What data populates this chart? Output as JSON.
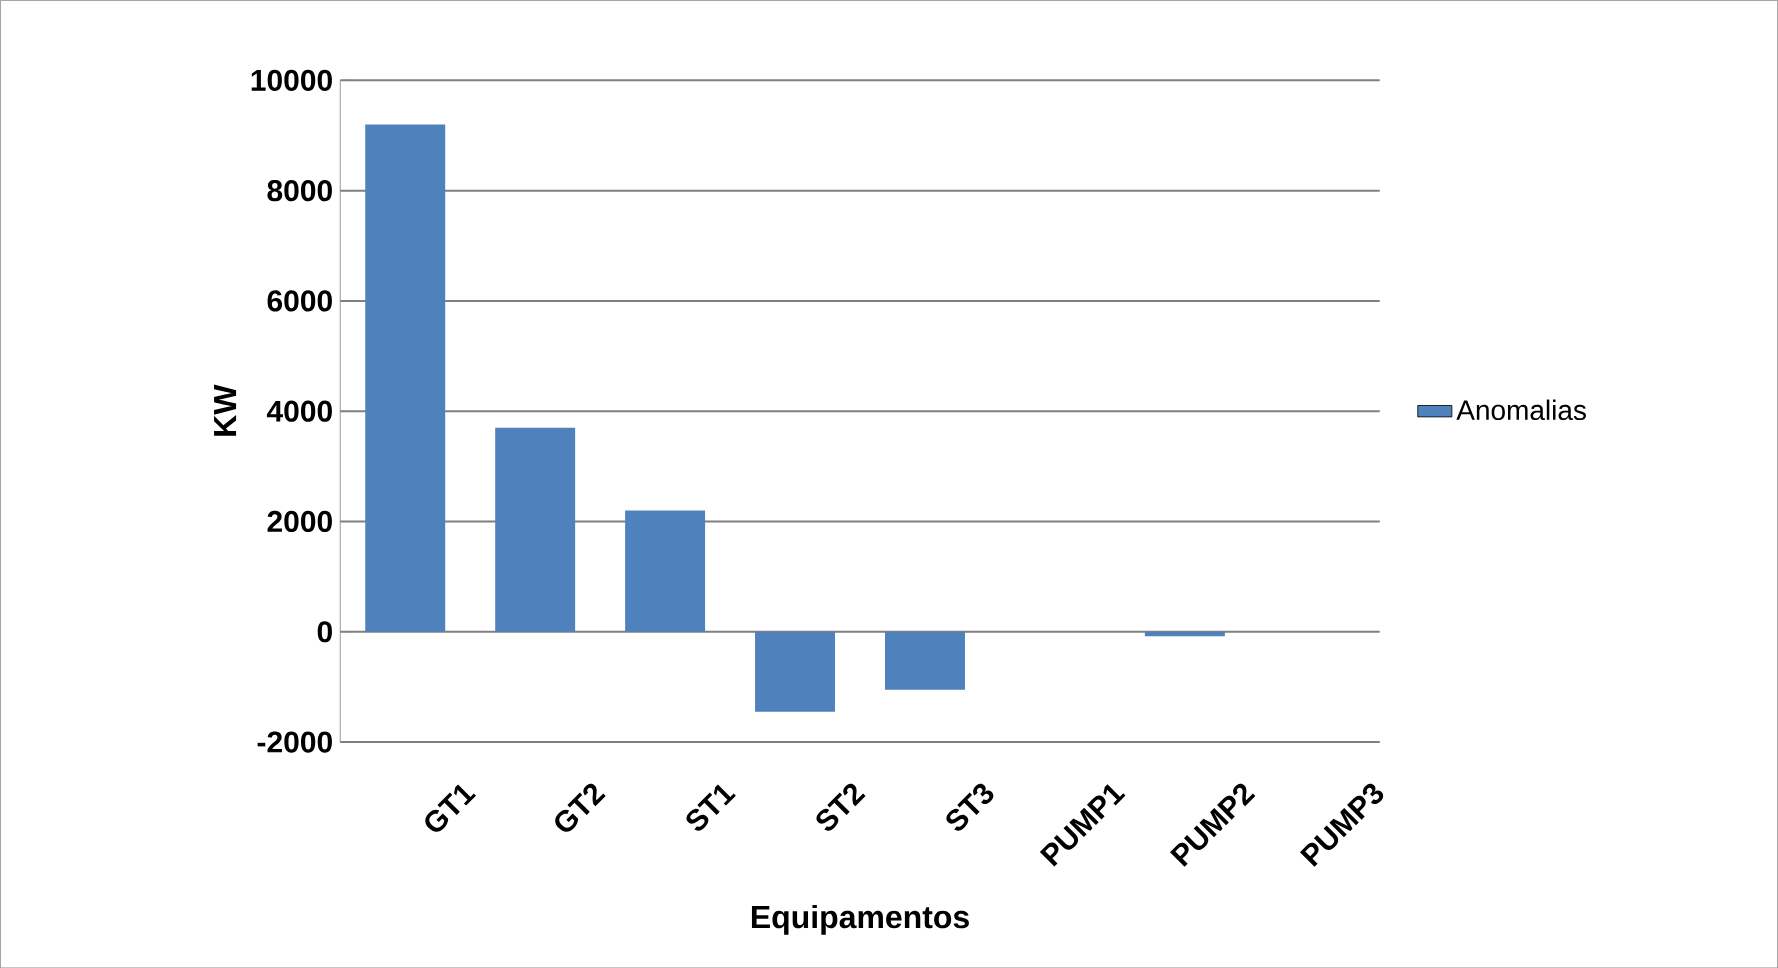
{
  "chart_data": {
    "type": "bar",
    "xlabel": "Equipamentos",
    "ylabel": "KW",
    "categories": [
      "GT1",
      "GT2",
      "ST1",
      "ST2",
      "ST3",
      "PUMP1",
      "PUMP2",
      "PUMP3"
    ],
    "series": [
      {
        "name": "Anomalias",
        "color": "#4f81bd",
        "values": [
          9200,
          3700,
          2200,
          -1450,
          -1050,
          0,
          -80,
          0
        ]
      }
    ],
    "ylim": [
      -2000,
      10000
    ],
    "yticks": [
      -2000,
      0,
      2000,
      4000,
      6000,
      8000,
      10000
    ],
    "grid": "y",
    "legend": "right"
  }
}
